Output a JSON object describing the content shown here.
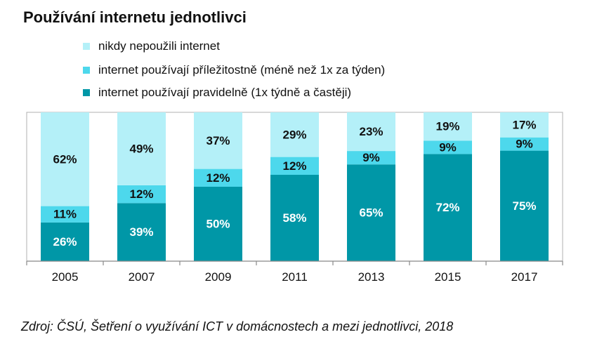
{
  "chart_data": {
    "type": "bar",
    "stacked": true,
    "title": "Používání internetu jednotlivci",
    "categories": [
      "2005",
      "2007",
      "2009",
      "2011",
      "2013",
      "2015",
      "2017"
    ],
    "series": [
      {
        "name": "internet používají pravidelně (1x týdně a častěji)",
        "color": "#0097a7",
        "label_color": "#ffffff",
        "values": [
          26,
          39,
          50,
          58,
          65,
          72,
          75
        ],
        "labels": [
          "26%",
          "39%",
          "50%",
          "58%",
          "65%",
          "72%",
          "75%"
        ]
      },
      {
        "name": "internet používají příležitostně (méně než 1x za týden)",
        "color": "#4dd8ec",
        "label_color": "#111111",
        "values": [
          11,
          12,
          12,
          12,
          9,
          9,
          9
        ],
        "labels": [
          "11%",
          "12%",
          "12%",
          "12%",
          "9%",
          "9%",
          "9%"
        ]
      },
      {
        "name": "nikdy nepoužili internet",
        "color": "#b4f0f8",
        "label_color": "#111111",
        "values": [
          62,
          49,
          37,
          29,
          23,
          19,
          17
        ],
        "labels": [
          "62%",
          "49%",
          "37%",
          "29%",
          "23%",
          "19%",
          "17%"
        ]
      }
    ],
    "legend_order": [
      2,
      1,
      0
    ],
    "ylim": [
      0,
      100
    ],
    "xlabel": "",
    "ylabel": "",
    "grid": false,
    "legend_position": "top",
    "source": "Zdroj: ČSÚ, Šetření o využívání ICT v domácnostech a mezi jednotlivci, 2018"
  }
}
